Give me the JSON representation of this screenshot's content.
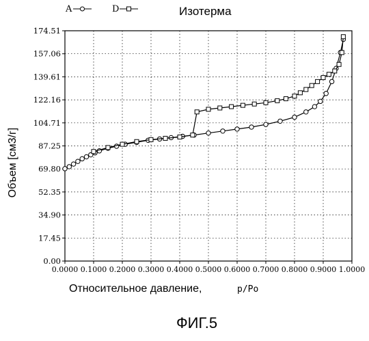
{
  "chart_data": {
    "type": "line",
    "title": "Изотерма",
    "xlabel": "Относительное давление,",
    "xlabel_unit": "p/Po",
    "ylabel": "Объем [см3/г]",
    "xlim": [
      0,
      1
    ],
    "ylim": [
      0,
      174.51
    ],
    "x_ticks": [
      "0.0000",
      "0.1000",
      "0.2000",
      "0.3000",
      "0.4000",
      "0.5000",
      "0.6000",
      "0.7000",
      "0.8000",
      "0.9000",
      "1.0000"
    ],
    "y_ticks": [
      "0.00",
      "17.45",
      "34.90",
      "52.35",
      "69.80",
      "87.25",
      "104.71",
      "122.16",
      "139.61",
      "157.06",
      "174.51"
    ],
    "grid": true,
    "legend_position": "top-left",
    "series": [
      {
        "name": "A",
        "marker": "circle",
        "x": [
          0.0,
          0.015,
          0.03,
          0.045,
          0.06,
          0.075,
          0.09,
          0.105,
          0.12,
          0.15,
          0.18,
          0.21,
          0.25,
          0.29,
          0.33,
          0.37,
          0.41,
          0.45,
          0.5,
          0.55,
          0.6,
          0.65,
          0.7,
          0.75,
          0.8,
          0.84,
          0.87,
          0.89,
          0.91,
          0.93,
          0.945,
          0.96,
          0.97
        ],
        "y": [
          70.0,
          71.5,
          73.5,
          75.5,
          77.5,
          79.0,
          80.5,
          82.0,
          83.5,
          85.5,
          87.0,
          88.5,
          90.0,
          91.5,
          92.5,
          93.5,
          94.5,
          95.5,
          97.0,
          98.5,
          100.0,
          101.5,
          103.5,
          106.0,
          109.0,
          113.0,
          117.0,
          121.0,
          127.0,
          136.0,
          146.0,
          158.0,
          168.0
        ]
      },
      {
        "name": "D",
        "marker": "square",
        "x": [
          0.1,
          0.15,
          0.2,
          0.25,
          0.3,
          0.35,
          0.4,
          0.445,
          0.46,
          0.5,
          0.54,
          0.58,
          0.62,
          0.66,
          0.7,
          0.74,
          0.77,
          0.8,
          0.82,
          0.84,
          0.86,
          0.88,
          0.9,
          0.92,
          0.94,
          0.955,
          0.965,
          0.97
        ],
        "y": [
          83.0,
          86.0,
          88.5,
          90.5,
          92.0,
          93.0,
          94.0,
          95.5,
          113.0,
          115.0,
          116.0,
          117.0,
          118.0,
          119.0,
          120.0,
          121.5,
          123.0,
          125.0,
          127.5,
          130.0,
          133.0,
          136.0,
          139.0,
          141.5,
          144.0,
          149.0,
          158.0,
          170.0
        ]
      }
    ]
  },
  "figure_caption": "ФИГ.5"
}
